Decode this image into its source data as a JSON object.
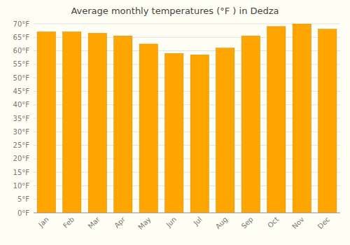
{
  "chart_data": {
    "type": "bar",
    "title": "Average monthly temperatures (°F ) in Dedza",
    "categories": [
      "Jan",
      "Feb",
      "Mar",
      "Apr",
      "May",
      "Jun",
      "Jul",
      "Aug",
      "Sep",
      "Oct",
      "Nov",
      "Dec"
    ],
    "values": [
      67,
      67,
      66.5,
      65.5,
      62.5,
      59,
      58.5,
      61,
      65.5,
      69,
      70,
      68
    ],
    "color": "#FFA500",
    "ylim": [
      0,
      70
    ],
    "yticks": [
      {
        "value": 0,
        "label": "0°F"
      },
      {
        "value": 5,
        "label": "5°F"
      },
      {
        "value": 10,
        "label": "10°F"
      },
      {
        "value": 15,
        "label": "15°F"
      },
      {
        "value": 20,
        "label": "20°F"
      },
      {
        "value": 25,
        "label": "25°F"
      },
      {
        "value": 30,
        "label": "30°F"
      },
      {
        "value": 35,
        "label": "35°F"
      },
      {
        "value": 40,
        "label": "40°F"
      },
      {
        "value": 45,
        "label": "45°F"
      },
      {
        "value": 50,
        "label": "50°F"
      },
      {
        "value": 55,
        "label": "55°F"
      },
      {
        "value": 60,
        "label": "60°F"
      },
      {
        "value": 65,
        "label": "65°F"
      },
      {
        "value": 70,
        "label": "70°F"
      }
    ],
    "grid": true
  }
}
